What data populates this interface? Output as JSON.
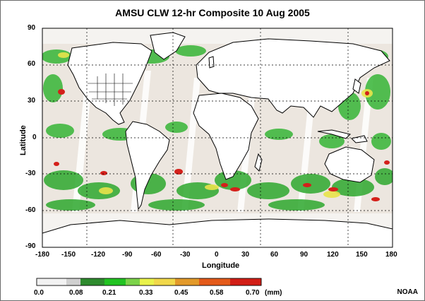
{
  "title": "AMSU CLW 12-hr Composite  10 Aug 2005",
  "axes": {
    "ylabel": "Latitude",
    "xlabel": "Longitude",
    "yticks": [
      "90",
      "60",
      "30",
      "0",
      "-30",
      "-60",
      "-90"
    ],
    "xticks": [
      "-180",
      "-150",
      "-120",
      "-90",
      "-60",
      "-30",
      "0",
      "30",
      "60",
      "90",
      "120",
      "150",
      "180"
    ],
    "xlim": [
      -180,
      180
    ],
    "ylim": [
      -90,
      90
    ],
    "grid": "dotted"
  },
  "colorbar": {
    "ticks": [
      "0.0",
      "0.08",
      "0.21",
      "0.33",
      "0.45",
      "0.58",
      "0.70"
    ],
    "unit": "(mm)",
    "colors": [
      "#f2f2f2",
      "#d9d9d9",
      "#2e8b2e",
      "#22c322",
      "#7cd34a",
      "#e9f24a",
      "#f1d84a",
      "#e39a2a",
      "#e45a1a",
      "#d21e16"
    ]
  },
  "credit": "NOAA"
}
